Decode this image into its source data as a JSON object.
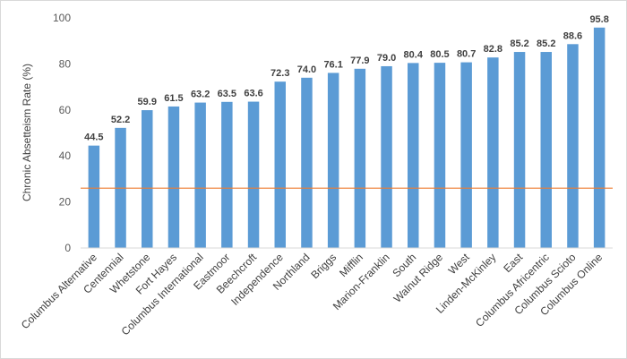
{
  "chart_data": {
    "type": "bar",
    "title": "",
    "xlabel": "",
    "ylabel": "Chronic Absetteism Rate (%)",
    "ylim": [
      0,
      100
    ],
    "yticks": [
      0,
      20,
      40,
      60,
      80,
      100
    ],
    "grid": false,
    "legend": "none",
    "categories": [
      "Columbus Alternative",
      "Centennial",
      "Whetstone",
      "Fort Hayes",
      "Columbus International",
      "Eastmoor",
      "Beechcroft",
      "Independence",
      "Northland",
      "Briggs",
      "Mifflin",
      "Marion-Franklin",
      "South",
      "Walnut Ridge",
      "West",
      "Linden-McKinley",
      "East",
      "Columbus Africentric",
      "Columbus Scioto",
      "Columbus Online"
    ],
    "values": [
      44.5,
      52.2,
      59.9,
      61.5,
      63.2,
      63.5,
      63.6,
      72.3,
      74.0,
      76.1,
      77.9,
      79.0,
      80.4,
      80.5,
      80.7,
      82.8,
      85.2,
      85.2,
      88.6,
      95.8
    ],
    "value_labels": [
      "44.5",
      "52.2",
      "59.9",
      "61.5",
      "63.2",
      "63.5",
      "63.6",
      "72.3",
      "74.0",
      "76.1",
      "77.9",
      "79.0",
      "80.4",
      "80.5",
      "80.7",
      "82.8",
      "85.2",
      "85.2",
      "88.6",
      "95.8"
    ],
    "reference_line": {
      "value": 26
    },
    "colors": {
      "bar": "#5b9bd5",
      "reference_line": "#ed7d31",
      "axis": "#d9d9d9"
    }
  }
}
